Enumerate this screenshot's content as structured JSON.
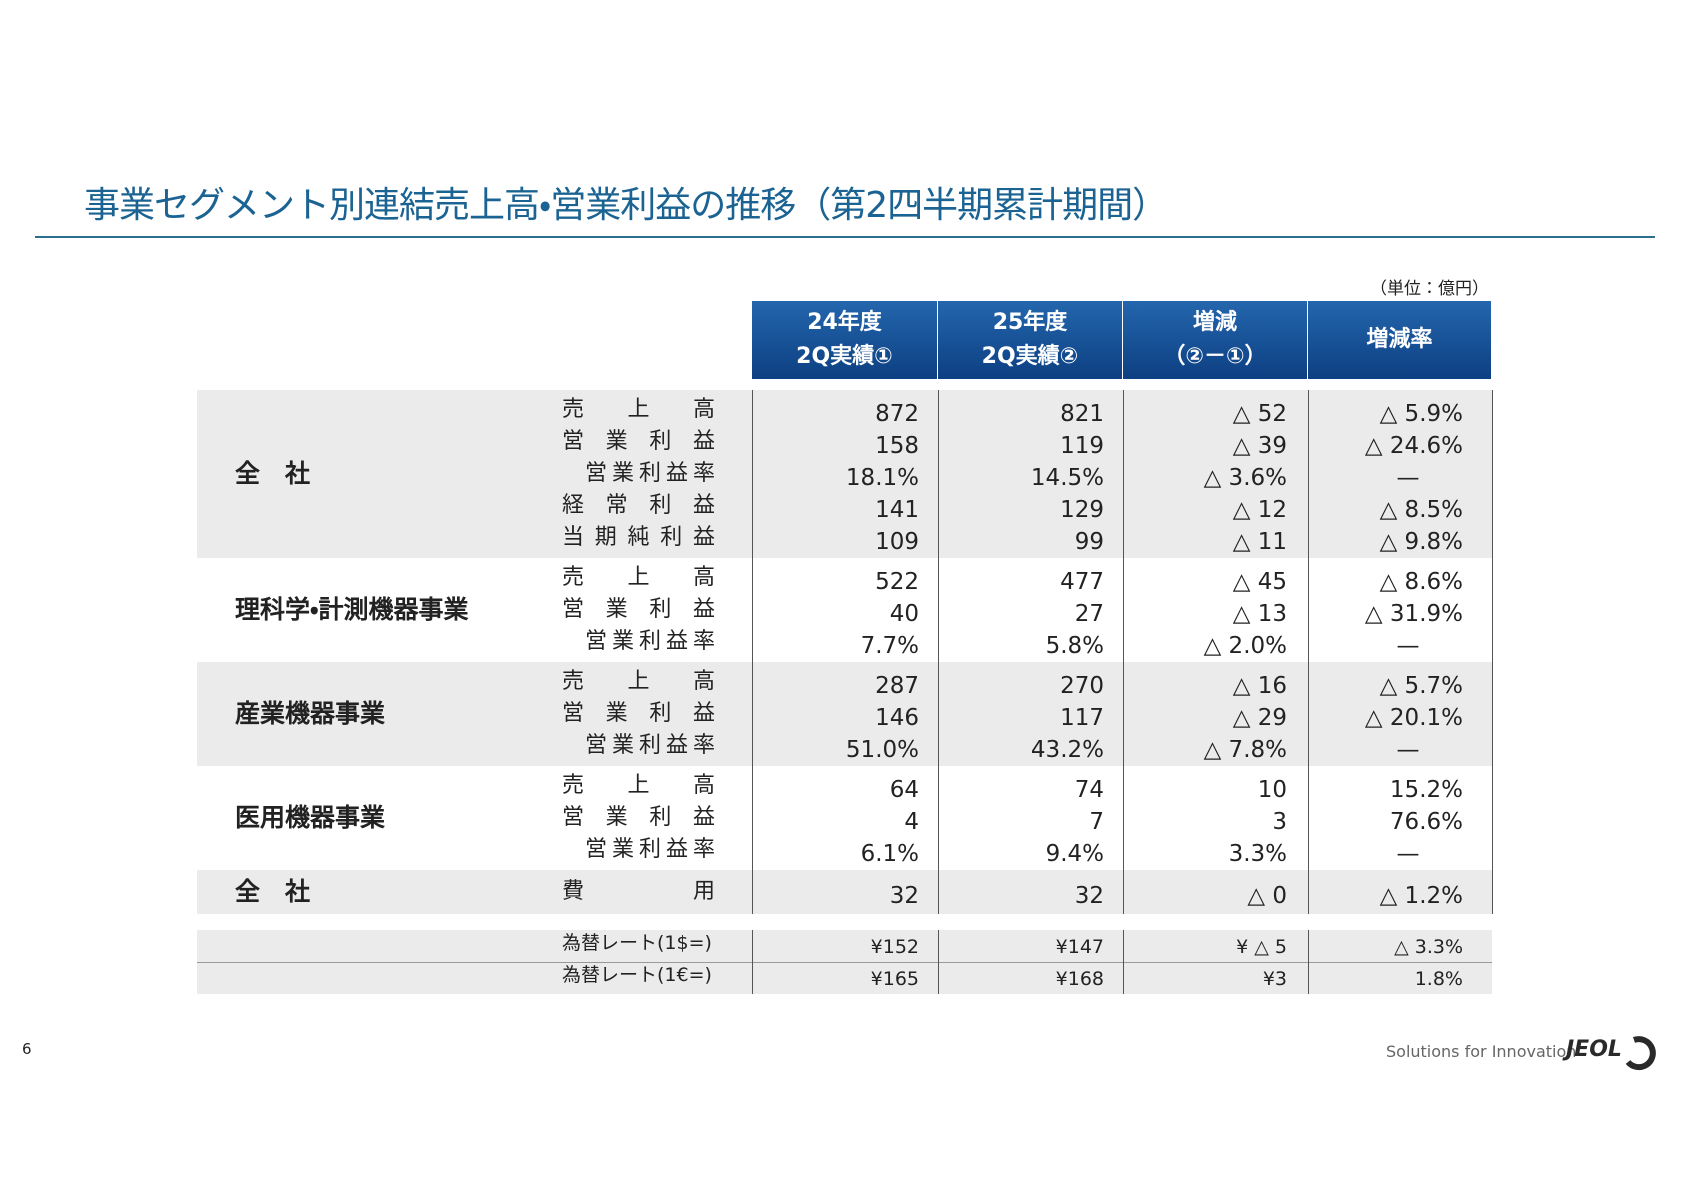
{
  "header": {
    "title": "事業セグメント別連結売上高・営業利益の推移（第2四半期累計期間）",
    "unit": "（単位：億円）",
    "columns": [
      [
        "24年度",
        "2Q実績①"
      ],
      [
        "25年度",
        "2Q実績②"
      ],
      [
        "増減",
        "（②－①）"
      ],
      [
        "増減率"
      ]
    ]
  },
  "table": {
    "groups": [
      {
        "segment": "全　社",
        "rows": [
          {
            "item": "売上高",
            "values": [
              "872",
              "821",
              "△ 52",
              "△ 5.9%"
            ]
          },
          {
            "item": "営業利益",
            "values": [
              "158",
              "119",
              "△ 39",
              "△ 24.6%"
            ]
          },
          {
            "item": "営業利益率",
            "values": [
              "18.1%",
              "14.5%",
              "△ 3.6%",
              "—"
            ]
          },
          {
            "item": "経常利益",
            "values": [
              "141",
              "129",
              "△ 12",
              "△ 8.5%"
            ]
          },
          {
            "item": "当期純利益",
            "values": [
              "109",
              "99",
              "△ 11",
              "△ 9.8%"
            ]
          }
        ]
      },
      {
        "segment": "理科学・計測機器事業",
        "rows": [
          {
            "item": "売上高",
            "values": [
              "522",
              "477",
              "△ 45",
              "△ 8.6%"
            ]
          },
          {
            "item": "営業利益",
            "values": [
              "40",
              "27",
              "△ 13",
              "△ 31.9%"
            ]
          },
          {
            "item": "営業利益率",
            "values": [
              "7.7%",
              "5.8%",
              "△ 2.0%",
              "—"
            ]
          }
        ]
      },
      {
        "segment": "産業機器事業",
        "rows": [
          {
            "item": "売上高",
            "values": [
              "287",
              "270",
              "△ 16",
              "△ 5.7%"
            ]
          },
          {
            "item": "営業利益",
            "values": [
              "146",
              "117",
              "△ 29",
              "△ 20.1%"
            ]
          },
          {
            "item": "営業利益率",
            "values": [
              "51.0%",
              "43.2%",
              "△ 7.8%",
              "—"
            ]
          }
        ]
      },
      {
        "segment": "医用機器事業",
        "rows": [
          {
            "item": "売上高",
            "values": [
              "64",
              "74",
              "10",
              "15.2%"
            ]
          },
          {
            "item": "営業利益",
            "values": [
              "4",
              "7",
              "3",
              "76.6%"
            ]
          },
          {
            "item": "営業利益率",
            "values": [
              "6.1%",
              "9.4%",
              "3.3%",
              "—"
            ]
          }
        ]
      },
      {
        "segment": "全　社",
        "rows": [
          {
            "item": "費用",
            "values": [
              "32",
              "32",
              "△ 0",
              "△ 1.2%"
            ]
          }
        ]
      }
    ],
    "fx_rows": [
      {
        "item": "為替レート(1$=)",
        "values": [
          "¥152",
          "¥147",
          "¥ △ 5",
          "△ 3.3%"
        ]
      },
      {
        "item": "為替レート(1€=)",
        "values": [
          "¥165",
          "¥168",
          "¥3",
          "1.8%"
        ]
      }
    ]
  },
  "footer": {
    "page": "6",
    "slogan": "Solutions for Innovation",
    "logo": "JEOL"
  }
}
